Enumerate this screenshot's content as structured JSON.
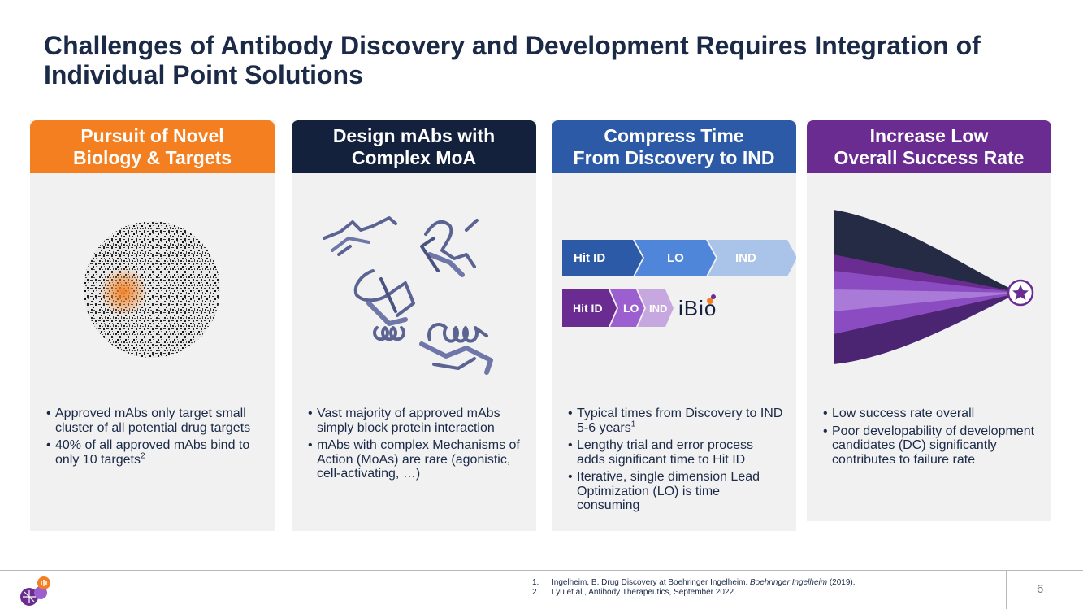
{
  "title": "Challenges of Antibody Discovery and Development Requires Integration of Individual Point Solutions",
  "colors": {
    "orange": "#f37f21",
    "navy": "#14213d",
    "blue": "#2c5aa7",
    "purple": "#6a2c91"
  },
  "cards": [
    {
      "header_line1": "Pursuit of Novel",
      "header_line2": "Biology & Targets",
      "bullets": [
        "Approved mAbs only target small cluster of all potential drug targets",
        "40% of all approved mAbs bind to only 10 targets"
      ],
      "bullet_2_sup": "2"
    },
    {
      "header_line1": "Design mAbs with",
      "header_line2": "Complex MoA",
      "bullets": [
        "Vast majority of approved mAbs simply block protein interaction",
        "mAbs with complex Mechanisms of Action (MoAs) are rare (agonistic, cell-activating, …)"
      ]
    },
    {
      "header_line1": "Compress Time",
      "header_line2": "From Discovery to IND",
      "timeline_standard": [
        "Hit ID",
        "LO",
        "IND"
      ],
      "timeline_ibio": [
        "Hit ID",
        "LO",
        "IND"
      ],
      "ibio_logo_text": "iBio",
      "bullets": [
        "Typical times from Discovery to IND 5-6 years",
        "Lengthy trial and error process adds significant time to Hit ID",
        "Iterative, single dimension Lead Optimization (LO) is time consuming"
      ],
      "bullet_1_sup": "1"
    },
    {
      "header_line1": "Increase Low",
      "header_line2": "Overall Success Rate",
      "bullets": [
        "Low success rate overall",
        "Poor developability of development candidates (DC) significantly contributes to failure rate"
      ]
    }
  ],
  "footnotes": [
    {
      "num": "1.",
      "text_a": "Ingelheim, B. Drug Discovery at Boehringer Ingelheim. ",
      "text_italic": "Boehringer Ingelheim",
      "text_b": " (2019)."
    },
    {
      "num": "2.",
      "text_a": "Lyu et al., Antibody Therapeutics, September 2022"
    }
  ],
  "page_number": "6"
}
